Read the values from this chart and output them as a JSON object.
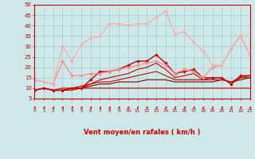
{
  "xlabel": "Vent moyen/en rafales ( km/h )",
  "xlim": [
    0,
    23
  ],
  "ylim": [
    5,
    50
  ],
  "yticks": [
    5,
    10,
    15,
    20,
    25,
    30,
    35,
    40,
    45,
    50
  ],
  "xticks": [
    0,
    1,
    2,
    3,
    4,
    5,
    6,
    7,
    8,
    9,
    10,
    11,
    12,
    13,
    14,
    15,
    16,
    17,
    18,
    19,
    20,
    21,
    22,
    23
  ],
  "bg_color": "#cce8e8",
  "grid_color": "#aacccc",
  "series": [
    {
      "x": [
        0,
        1,
        2,
        3,
        4,
        5,
        6,
        7,
        8,
        9,
        10,
        11,
        12,
        13,
        14,
        15,
        16,
        17,
        18,
        19,
        20,
        21,
        22,
        23
      ],
      "y": [
        9,
        10,
        9,
        9,
        9,
        10,
        10,
        10,
        10,
        10,
        10,
        10,
        10,
        10,
        10,
        10,
        10,
        10,
        10,
        10,
        10,
        10,
        10,
        10
      ],
      "color": "#cc0000",
      "marker": null,
      "linewidth": 0.8
    },
    {
      "x": [
        0,
        1,
        2,
        3,
        4,
        5,
        6,
        7,
        8,
        9,
        10,
        11,
        12,
        13,
        14,
        15,
        16,
        17,
        18,
        19,
        20,
        21,
        22,
        23
      ],
      "y": [
        9,
        10,
        9,
        9,
        10,
        10,
        11,
        12,
        12,
        13,
        13,
        13,
        14,
        14,
        14,
        13,
        13,
        13,
        13,
        13,
        14,
        13,
        14,
        15
      ],
      "color": "#880000",
      "marker": null,
      "linewidth": 0.8
    },
    {
      "x": [
        0,
        1,
        2,
        3,
        4,
        5,
        6,
        7,
        8,
        9,
        10,
        11,
        12,
        13,
        14,
        15,
        16,
        17,
        18,
        19,
        20,
        21,
        22,
        23
      ],
      "y": [
        9,
        10,
        9,
        10,
        10,
        11,
        12,
        13,
        13,
        14,
        15,
        16,
        17,
        18,
        16,
        14,
        14,
        14,
        14,
        14,
        14,
        13,
        15,
        15
      ],
      "color": "#cc0000",
      "marker": null,
      "linewidth": 0.8
    },
    {
      "x": [
        0,
        1,
        2,
        3,
        4,
        5,
        6,
        7,
        8,
        9,
        10,
        11,
        12,
        13,
        14,
        15,
        16,
        17,
        18,
        19,
        20,
        21,
        22,
        23
      ],
      "y": [
        9,
        10,
        9,
        9,
        10,
        10,
        12,
        14,
        15,
        16,
        17,
        19,
        20,
        22,
        19,
        15,
        16,
        17,
        14,
        15,
        15,
        12,
        15,
        16
      ],
      "color": "#cc0000",
      "marker": null,
      "linewidth": 0.8
    },
    {
      "x": [
        0,
        1,
        2,
        3,
        4,
        5,
        6,
        7,
        8,
        9,
        10,
        11,
        12,
        13,
        14,
        15,
        16,
        17,
        18,
        19,
        20,
        21,
        22,
        23
      ],
      "y": [
        9,
        10,
        9,
        9,
        10,
        10,
        14,
        18,
        18,
        19,
        21,
        23,
        23,
        26,
        22,
        17,
        18,
        19,
        15,
        15,
        15,
        12,
        16,
        16
      ],
      "color": "#cc0000",
      "marker": "D",
      "markersize": 2.0,
      "linewidth": 1.0
    },
    {
      "x": [
        0,
        1,
        2,
        3,
        4,
        5,
        6,
        7,
        8,
        9,
        10,
        11,
        12,
        13,
        14,
        15,
        16,
        17,
        18,
        19,
        20,
        21,
        22,
        23
      ],
      "y": [
        14,
        13,
        12,
        23,
        16,
        16,
        17,
        17,
        18,
        19,
        20,
        21,
        22,
        23,
        21,
        17,
        19,
        18,
        15,
        20,
        21,
        29,
        35,
        26
      ],
      "color": "#ff8888",
      "marker": "D",
      "markersize": 2.0,
      "linewidth": 0.9
    },
    {
      "x": [
        0,
        1,
        2,
        3,
        4,
        5,
        6,
        7,
        8,
        9,
        10,
        11,
        12,
        13,
        14,
        15,
        16,
        17,
        18,
        19,
        20,
        21,
        22,
        23
      ],
      "y": [
        14,
        13,
        12,
        30,
        23,
        31,
        34,
        35,
        41,
        41,
        40,
        41,
        41,
        44,
        47,
        36,
        37,
        32,
        28,
        21,
        21,
        29,
        35,
        26
      ],
      "color": "#ffaaaa",
      "marker": "D",
      "markersize": 2.0,
      "linewidth": 0.9
    }
  ],
  "arrow_color": "#cc0000",
  "axis_color": "#cc0000",
  "tick_color": "#cc0000",
  "label_color": "#cc0000"
}
